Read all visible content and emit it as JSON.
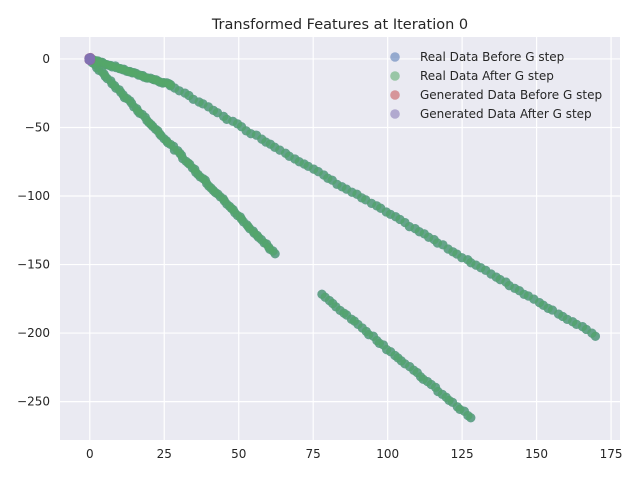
{
  "chart_data": {
    "type": "scatter",
    "title": "Transformed Features at Iteration 0",
    "xlabel": "",
    "ylabel": "",
    "xlim": [
      -10,
      178
    ],
    "ylim": [
      -278,
      16
    ],
    "xticks": [
      0,
      25,
      50,
      75,
      100,
      125,
      150,
      175
    ],
    "yticks": [
      0,
      -50,
      -100,
      -150,
      -200,
      -250
    ],
    "grid": true,
    "legend_position": "top-right",
    "series": [
      {
        "name": "Real Data Before G step",
        "color": "#4C72B0",
        "points": []
      },
      {
        "name": "Real Data After G step",
        "color": "#55A868",
        "points": []
      },
      {
        "name": "Generated Data Before G step",
        "color": "#C44E52",
        "points": []
      },
      {
        "name": "Generated Data After G step",
        "color": "#8172B2",
        "points": []
      }
    ],
    "segments": [
      {
        "from": [
          1,
          -0.5
        ],
        "to": [
          27,
          -19
        ],
        "count": 40
      },
      {
        "from": [
          27,
          -19
        ],
        "to": [
          170,
          -202
        ],
        "count": 90
      },
      {
        "from": [
          1,
          -3
        ],
        "to": [
          62,
          -142
        ],
        "count": 85
      },
      {
        "from": [
          78,
          -172
        ],
        "to": [
          128,
          -262
        ],
        "count": 42
      }
    ],
    "generated_cluster": {
      "center": [
        0,
        0
      ],
      "spread": 0.6,
      "count": 20
    }
  }
}
